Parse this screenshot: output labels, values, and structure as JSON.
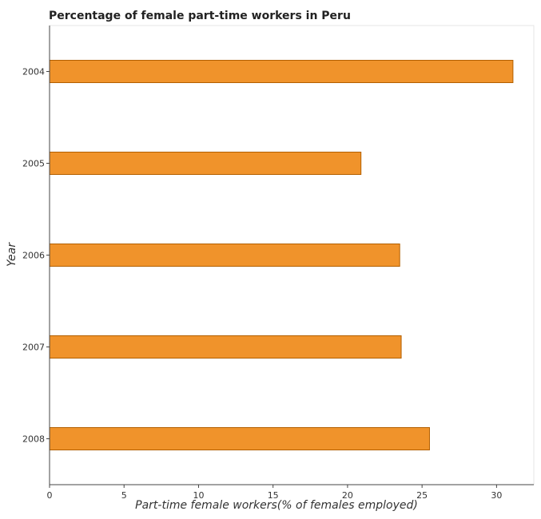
{
  "chart_data": {
    "type": "bar",
    "orientation": "horizontal",
    "title": "Percentage of female part-time workers in Peru",
    "xlabel": "Part-time female workers(% of females employed)",
    "ylabel": "Year",
    "categories": [
      "2004",
      "2005",
      "2006",
      "2007",
      "2008"
    ],
    "values": [
      31.1,
      20.9,
      23.5,
      23.6,
      25.5
    ],
    "xlim": [
      0,
      32.5
    ],
    "xticks": [
      0,
      5,
      10,
      15,
      20,
      25,
      30
    ],
    "grid": false,
    "bar_color": "#f0932b",
    "bar_edge_color": "#b35f00"
  }
}
